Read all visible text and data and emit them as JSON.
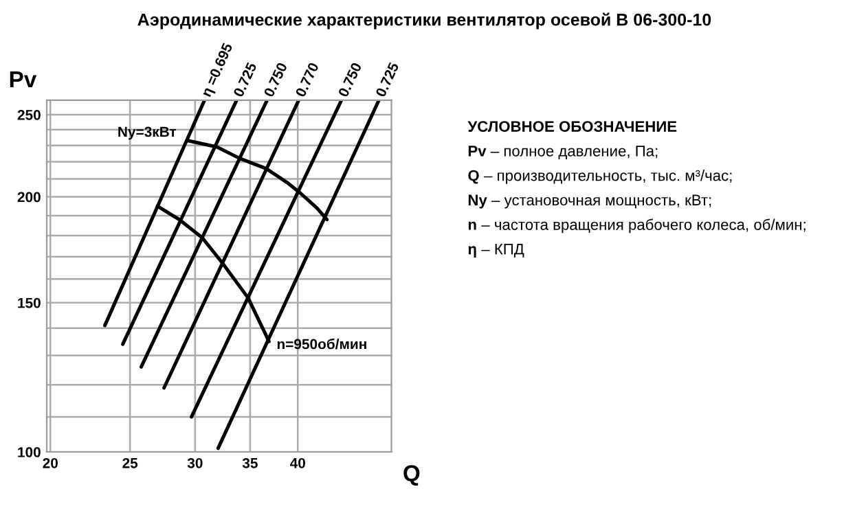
{
  "chart_data": {
    "type": "line",
    "title": "Аэродинамические характеристики вентилятор осевой В 06-300-10",
    "xlabel": "Q",
    "ylabel": "Pv",
    "log": "xy",
    "xlim": [
      19.8,
      52
    ],
    "ylim": [
      100,
      260
    ],
    "xticks": [
      20,
      25,
      30,
      35,
      40
    ],
    "yticks": [
      100,
      {
        "value": 110,
        "label": null
      },
      {
        "value": 120,
        "label": null
      },
      {
        "value": 130,
        "label": null
      },
      {
        "value": 140,
        "label": null
      },
      150,
      {
        "value": 160,
        "label": null
      },
      {
        "value": 170,
        "label": null
      },
      {
        "value": 180,
        "label": null
      },
      {
        "value": 190,
        "label": null
      },
      200,
      {
        "value": 210,
        "label": null
      },
      {
        "value": 220,
        "label": null
      },
      {
        "value": 230,
        "label": null
      },
      {
        "value": 240,
        "label": null
      },
      250
    ],
    "grid": true,
    "marker": "none",
    "line_style": "solid",
    "series": [
      {
        "name": "η =0.695",
        "color": "#000000",
        "x": [
          23.3,
          30.8
        ],
        "values": [
          141,
          260
        ]
      },
      {
        "name": "0.725",
        "color": "#000000",
        "x": [
          24.5,
          33.7
        ],
        "values": [
          134,
          260
        ]
      },
      {
        "name": "0.750",
        "color": "#000000",
        "x": [
          25.8,
          36.7
        ],
        "values": [
          126,
          260
        ]
      },
      {
        "name": "0.770",
        "color": "#000000",
        "x": [
          27.5,
          40.1
        ],
        "values": [
          119,
          260
        ]
      },
      {
        "name": "0.750",
        "color": "#000000",
        "x": [
          29.7,
          45.2
        ],
        "values": [
          110,
          260
        ]
      },
      {
        "name": "0.725",
        "color": "#000000",
        "x": [
          32.0,
          50.2
        ],
        "values": [
          101,
          260
        ]
      },
      {
        "name": "Ny=3кВт",
        "color": "#000000",
        "x": [
          43.4,
          42.2,
          40.3,
          38.8,
          36.6,
          34.0,
          31.9,
          29.4
        ],
        "values": [
          188,
          194,
          202,
          208,
          216,
          222,
          229,
          233
        ]
      },
      {
        "name": "n=950об/мин",
        "color": "#000000",
        "x": [
          27.0,
          28.7,
          30.6,
          32.4,
          34.8,
          36.9
        ],
        "values": [
          195,
          188,
          179,
          167,
          152,
          135
        ]
      }
    ],
    "annotations": [
      "УСЛОВНОЕ ОБОЗНАЧЕНИЕ",
      "Pv – полное давление, Па;",
      "Q – производительность, тыс. м³/час;",
      "Ny – установочная мощность, кВт;",
      "n – частота вращения рабочего колеса, об/мин;",
      "η – КПД"
    ]
  }
}
